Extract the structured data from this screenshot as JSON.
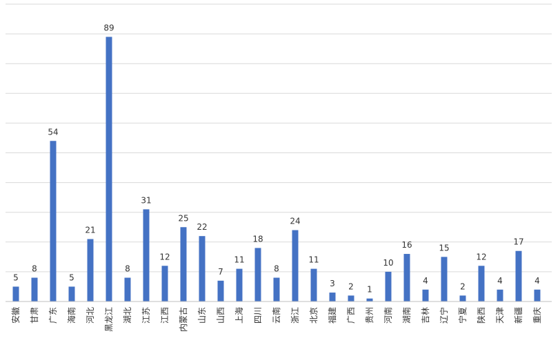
{
  "chart_data": {
    "type": "bar",
    "categories": [
      "安徽",
      "甘肃",
      "广东",
      "海南",
      "河北",
      "黑龙江",
      "湖北",
      "江苏",
      "江西",
      "内蒙古",
      "山东",
      "山西",
      "上海",
      "四川",
      "云南",
      "浙江",
      "北京",
      "福建",
      "广西",
      "贵州",
      "河南",
      "湖南",
      "吉林",
      "辽宁",
      "宁夏",
      "陕西",
      "天津",
      "新疆",
      "重庆"
    ],
    "values": [
      5,
      8,
      54,
      5,
      21,
      89,
      8,
      31,
      12,
      25,
      22,
      7,
      11,
      18,
      8,
      24,
      11,
      3,
      2,
      1,
      10,
      16,
      4,
      15,
      2,
      12,
      4,
      17,
      4
    ],
    "ylim": [
      0,
      100
    ],
    "grid": true,
    "legend": "none",
    "bar_color": "#4472c4",
    "grid_color": "#d9d9d9"
  }
}
